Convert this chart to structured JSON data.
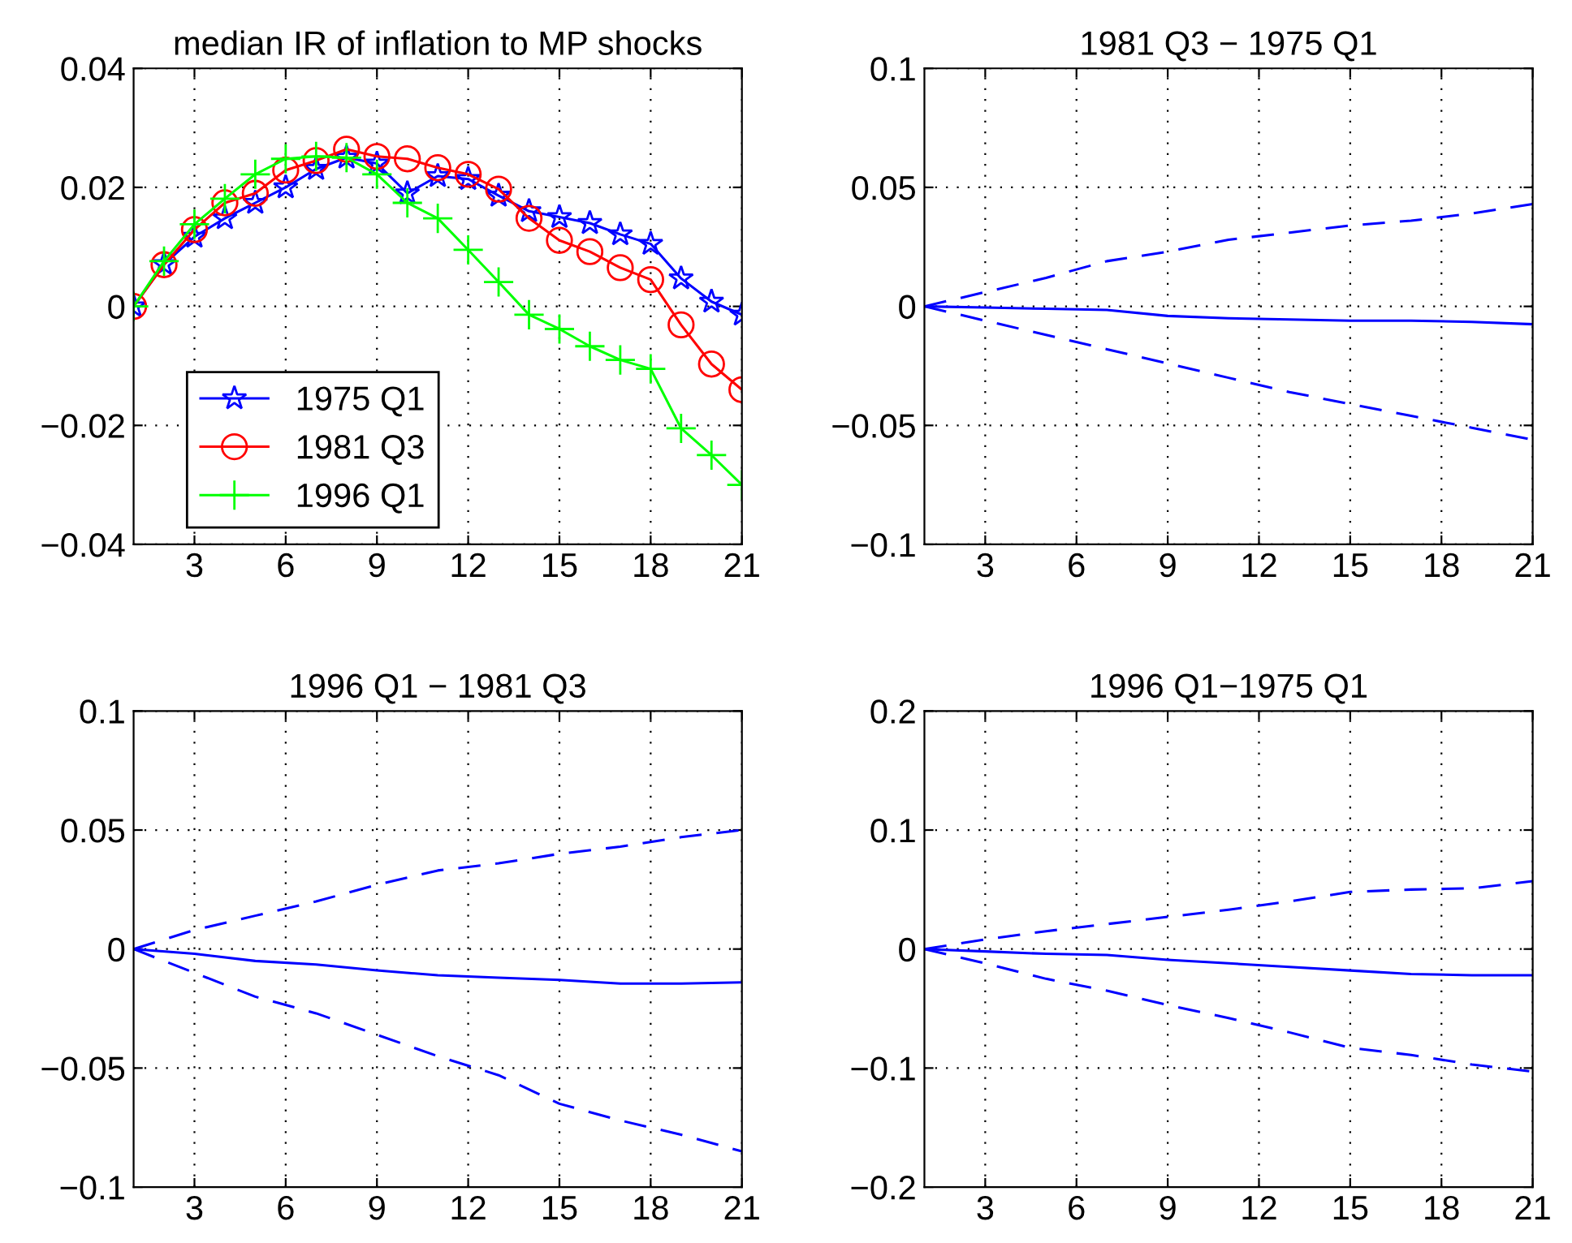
{
  "chart_data": [
    {
      "type": "line",
      "title": "median IR of inflation to MP shocks",
      "xlim": [
        1,
        21
      ],
      "xticks": [
        3,
        6,
        9,
        12,
        15,
        18,
        21
      ],
      "ylim": [
        -0.04,
        0.04
      ],
      "yticks": [
        {
          "value": -0.04,
          "label": "−0.04"
        },
        {
          "value": -0.02,
          "label": "−0.02"
        },
        0,
        0.02,
        0.04
      ],
      "grid": true,
      "legend": "bottom left",
      "x": [
        1,
        2,
        3,
        4,
        5,
        6,
        7,
        8,
        9,
        10,
        11,
        12,
        13,
        14,
        15,
        16,
        17,
        18,
        19,
        20,
        21
      ],
      "series": [
        {
          "name": "1975 Q1",
          "color": "#0000ff",
          "marker": "star",
          "line_style": "solid",
          "values": [
            0,
            0.0071,
            0.0117,
            0.0148,
            0.0174,
            0.02,
            0.0231,
            0.025,
            0.024,
            0.019,
            0.0219,
            0.0214,
            0.0186,
            0.016,
            0.015,
            0.014,
            0.0121,
            0.0105,
            0.0047,
            0.0008,
            -0.0014
          ]
        },
        {
          "name": "1981 Q3",
          "color": "#ff0000",
          "marker": "circle",
          "line_style": "solid",
          "values": [
            0,
            0.007,
            0.0129,
            0.0174,
            0.019,
            0.0229,
            0.0245,
            0.0264,
            0.0252,
            0.0248,
            0.0233,
            0.0222,
            0.0197,
            0.0148,
            0.0111,
            0.0092,
            0.0065,
            0.0045,
            -0.0031,
            -0.0097,
            -0.014
          ]
        },
        {
          "name": "1996 Q1",
          "color": "#00ff00",
          "marker": "cross",
          "line_style": "solid",
          "values": [
            0,
            0.0076,
            0.0138,
            0.0181,
            0.0222,
            0.0248,
            0.0252,
            0.025,
            0.0222,
            0.0174,
            0.0148,
            0.0095,
            0.0041,
            -0.0014,
            -0.0038,
            -0.0067,
            -0.009,
            -0.0105,
            -0.0205,
            -0.025,
            -0.03
          ]
        }
      ]
    },
    {
      "type": "line",
      "title": "1981 Q3 − 1975 Q1",
      "xlim": [
        1,
        21
      ],
      "xticks": [
        3,
        6,
        9,
        12,
        15,
        18,
        21
      ],
      "ylim": [
        -0.1,
        0.1
      ],
      "yticks": [
        {
          "value": -0.1,
          "label": "−0.1"
        },
        {
          "value": -0.05,
          "label": "−0.05"
        },
        0,
        0.05,
        0.1
      ],
      "grid": true,
      "x": [
        1,
        3,
        5,
        7,
        9,
        11,
        13,
        15,
        17,
        19,
        21
      ],
      "series": [
        {
          "color": "#0000ff",
          "line_style": "solid",
          "values": [
            0,
            -0.0005,
            -0.001,
            -0.0015,
            -0.004,
            -0.005,
            -0.0055,
            -0.006,
            -0.006,
            -0.0065,
            -0.0075
          ]
        },
        {
          "color": "#0000ff",
          "line_style": "dashed",
          "values": [
            0,
            0.006,
            0.012,
            0.019,
            0.023,
            0.028,
            0.031,
            0.034,
            0.036,
            0.039,
            0.043
          ]
        },
        {
          "color": "#0000ff",
          "line_style": "dashed",
          "values": [
            0,
            -0.006,
            -0.012,
            -0.018,
            -0.024,
            -0.03,
            -0.036,
            -0.041,
            -0.046,
            -0.051,
            -0.056
          ]
        }
      ]
    },
    {
      "type": "line",
      "title": "1996 Q1 − 1981 Q3",
      "xlim": [
        1,
        21
      ],
      "xticks": [
        3,
        6,
        9,
        12,
        15,
        18,
        21
      ],
      "ylim": [
        -0.1,
        0.1
      ],
      "yticks": [
        {
          "value": -0.1,
          "label": "−0.1"
        },
        {
          "value": -0.05,
          "label": "−0.05"
        },
        0,
        0.05,
        0.1
      ],
      "grid": true,
      "x": [
        1,
        3,
        5,
        7,
        9,
        11,
        13,
        15,
        17,
        19,
        21
      ],
      "series": [
        {
          "color": "#0000ff",
          "line_style": "solid",
          "values": [
            0,
            -0.002,
            -0.005,
            -0.0065,
            -0.009,
            -0.011,
            -0.012,
            -0.013,
            -0.0145,
            -0.0145,
            -0.014
          ]
        },
        {
          "color": "#0000ff",
          "line_style": "dashed",
          "values": [
            0,
            0.008,
            0.014,
            0.02,
            0.027,
            0.033,
            0.036,
            0.04,
            0.043,
            0.047,
            0.05
          ]
        },
        {
          "color": "#0000ff",
          "line_style": "dashed",
          "values": [
            0,
            -0.01,
            -0.02,
            -0.027,
            -0.036,
            -0.045,
            -0.053,
            -0.065,
            -0.072,
            -0.078,
            -0.085
          ]
        }
      ]
    },
    {
      "type": "line",
      "title": "1996 Q1−1975 Q1",
      "xlim": [
        1,
        21
      ],
      "xticks": [
        3,
        6,
        9,
        12,
        15,
        18,
        21
      ],
      "ylim": [
        -0.2,
        0.2
      ],
      "yticks": [
        {
          "value": -0.2,
          "label": "−0.2"
        },
        {
          "value": -0.1,
          "label": "−0.1"
        },
        0,
        0.1,
        0.2
      ],
      "grid": true,
      "x": [
        1,
        3,
        5,
        7,
        9,
        11,
        13,
        15,
        17,
        19,
        21
      ],
      "series": [
        {
          "color": "#0000ff",
          "line_style": "solid",
          "values": [
            0,
            -0.002,
            -0.004,
            -0.005,
            -0.009,
            -0.012,
            -0.015,
            -0.018,
            -0.021,
            -0.022,
            -0.022
          ]
        },
        {
          "color": "#0000ff",
          "line_style": "dashed",
          "values": [
            0,
            0.008,
            0.015,
            0.021,
            0.027,
            0.033,
            0.04,
            0.048,
            0.05,
            0.051,
            0.057
          ]
        },
        {
          "color": "#0000ff",
          "line_style": "dashed",
          "values": [
            0,
            -0.012,
            -0.025,
            -0.035,
            -0.047,
            -0.058,
            -0.07,
            -0.083,
            -0.089,
            -0.097,
            -0.103
          ]
        }
      ]
    }
  ]
}
